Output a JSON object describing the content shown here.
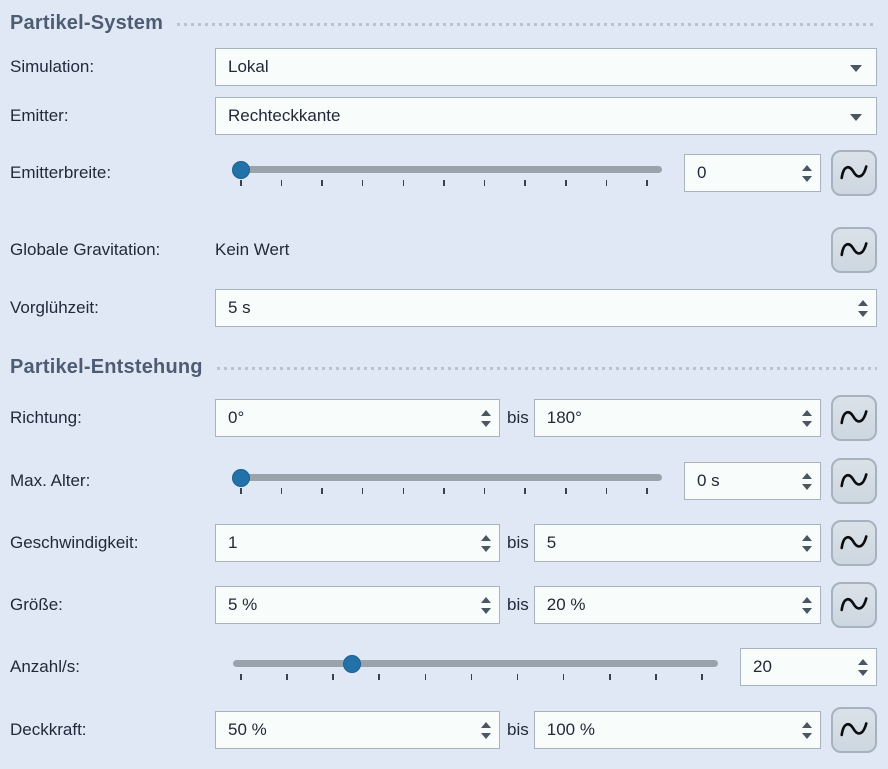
{
  "system": {
    "title": "Partikel-System",
    "simulation_label": "Simulation:",
    "simulation_value": "Lokal",
    "emitter_label": "Emitter:",
    "emitter_value": "Rechteckkante",
    "emitterbreite_label": "Emitterbreite:",
    "emitterbreite_value": "0",
    "emitterbreite_slider_percent": 1.5,
    "gravitation_label": "Globale Gravitation:",
    "gravitation_value": "Kein Wert",
    "vorgluehzeit_label": "Vorglühzeit:",
    "vorgluehzeit_value": "5 s"
  },
  "creation": {
    "title": "Partikel-Entstehung",
    "bis_label": "bis",
    "richtung_label": "Richtung:",
    "richtung_from": "0°",
    "richtung_to": "180°",
    "max_alter_label": "Max. Alter:",
    "max_alter_value": "0 s",
    "max_alter_slider_percent": 1.5,
    "geschwindigkeit_label": "Geschwindigkeit:",
    "geschwindigkeit_from": "1",
    "geschwindigkeit_to": "5",
    "groesse_label": "Größe:",
    "groesse_from": "5 %",
    "groesse_to": "20 %",
    "anzahl_label": "Anzahl/s:",
    "anzahl_value": "20",
    "anzahl_slider_percent": 24.5,
    "deckkraft_label": "Deckkraft:",
    "deckkraft_from": "50 %",
    "deckkraft_to": "100 %"
  },
  "colors": {
    "panel_background": "#e0e8f5",
    "input_background": "#f8fcfb",
    "input_border": "#a9b3bd",
    "accent_blue": "#2272a9",
    "header_text": "#4d5c72",
    "slider_track": "#9aa2ac"
  },
  "icons": {
    "curve_button": "sine-wave-icon",
    "dropdown": "chevron-down-icon",
    "spin_up": "triangle-up-icon",
    "spin_down": "triangle-down-icon"
  }
}
